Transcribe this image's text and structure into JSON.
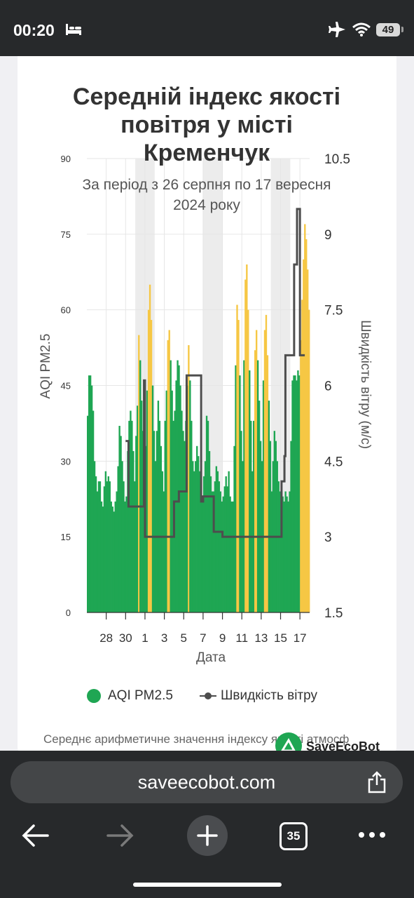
{
  "status": {
    "time": "00:20",
    "battery": "49"
  },
  "browser": {
    "url": "saveecobot.com",
    "tab_count": "35"
  },
  "legend": {
    "aqi_label": "AQI PM2.5",
    "wind_label": "Швидкість вітру"
  },
  "footer": {
    "text": "Середнє арифметичне значення індексу якості атмосф",
    "brand": "SaveEcoBot"
  },
  "chart_data": {
    "type": "bar",
    "title": "Середній індекс якості повітря у місті Кременчук",
    "title_lines": [
      "Середній індекс якості",
      "повітря у місті",
      "Кременчук"
    ],
    "subtitle_lines": [
      "За період з 26 серпня по 17 вересня",
      "2024 року"
    ],
    "xlabel": "Дата",
    "ylabel_left": "AQI PM2.5",
    "ylabel_right": "Швидкість вітру (м/с)",
    "ylim_left": [
      0,
      90
    ],
    "ylim_right": [
      1.5,
      10.5
    ],
    "left_ticks": [
      "0",
      "15",
      "30",
      "45",
      "60",
      "75",
      "90"
    ],
    "right_ticks": [
      "1.5",
      "3",
      "4.5",
      "6",
      "7.5",
      "9",
      "10.5"
    ],
    "x_tick_labels": [
      "28",
      "30",
      "1",
      "3",
      "5",
      "7",
      "9",
      "11",
      "13",
      "15",
      "17"
    ],
    "colors": {
      "good": "#1fa653",
      "moderate": "#f6c744",
      "wind": "#4d4d4d",
      "weekend": "#ececec",
      "grid": "#e6e6e6"
    },
    "daily_aqi": [
      {
        "date": "26.08",
        "values": [
          39,
          47,
          47,
          45,
          40,
          30,
          27
        ]
      },
      {
        "date": "27.08",
        "values": [
          24,
          26,
          26,
          22,
          21,
          25,
          28
        ]
      },
      {
        "date": "28.08",
        "values": [
          26,
          27,
          26,
          22,
          21,
          20,
          22
        ]
      },
      {
        "date": "29.08",
        "values": [
          24,
          29,
          37,
          35,
          30,
          26,
          22
        ]
      },
      {
        "date": "30.08",
        "values": [
          23,
          32,
          38,
          40,
          38,
          32,
          26
        ]
      },
      {
        "date": "31.08",
        "values": [
          35,
          41,
          55,
          50,
          42,
          36,
          30
        ]
      },
      {
        "date": "01.09",
        "values": [
          33,
          44,
          60,
          65,
          58,
          45,
          36
        ]
      },
      {
        "date": "02.09",
        "values": [
          30,
          36,
          42,
          38,
          33,
          28,
          24
        ]
      },
      {
        "date": "03.09",
        "values": [
          38,
          44,
          54,
          56,
          50,
          44,
          38
        ]
      },
      {
        "date": "04.09",
        "values": [
          40,
          46,
          50,
          49,
          45,
          40,
          36
        ]
      },
      {
        "date": "05.09",
        "values": [
          34,
          38,
          45,
          53,
          46,
          38,
          30
        ]
      },
      {
        "date": "06.09",
        "values": [
          28,
          30,
          33,
          31,
          28,
          25,
          22
        ]
      },
      {
        "date": "07.09",
        "values": [
          27,
          30,
          39,
          38,
          32,
          27,
          24
        ]
      },
      {
        "date": "08.09",
        "values": [
          24,
          26,
          29,
          28,
          26,
          24,
          22
        ]
      },
      {
        "date": "09.09",
        "values": [
          23,
          25,
          27,
          25,
          28,
          23,
          22
        ]
      },
      {
        "date": "10.09",
        "values": [
          22,
          33,
          49,
          61,
          58,
          47,
          36
        ]
      },
      {
        "date": "11.09",
        "values": [
          30,
          50,
          66,
          69,
          60,
          48,
          38
        ]
      },
      {
        "date": "12.09",
        "values": [
          28,
          38,
          52,
          56,
          50,
          42,
          34
        ]
      },
      {
        "date": "13.09",
        "values": [
          30,
          46,
          56,
          59,
          51,
          42,
          34
        ]
      },
      {
        "date": "14.09",
        "values": [
          24,
          30,
          36,
          34,
          30,
          26,
          24
        ]
      },
      {
        "date": "15.09",
        "values": [
          22,
          23,
          22,
          24,
          23,
          22,
          24
        ]
      },
      {
        "date": "16.09",
        "values": [
          34,
          46,
          47,
          47,
          46,
          48,
          47
        ]
      },
      {
        "date": "17.09",
        "values": [
          54,
          62,
          70,
          77,
          74,
          68,
          60
        ]
      }
    ],
    "wind_steps": [
      {
        "day": 4.0,
        "value": 4.9
      },
      {
        "day": 4.3,
        "value": 3.6
      },
      {
        "day": 5.0,
        "value": 3.6
      },
      {
        "day": 5.9,
        "value": 6.1
      },
      {
        "day": 6.0,
        "value": 3.0
      },
      {
        "day": 7.0,
        "value": 3.0
      },
      {
        "day": 8.0,
        "value": 3.0
      },
      {
        "day": 9.0,
        "value": 3.7
      },
      {
        "day": 9.5,
        "value": 3.9
      },
      {
        "day": 10.0,
        "value": 3.9
      },
      {
        "day": 10.3,
        "value": 6.2
      },
      {
        "day": 11.0,
        "value": 6.2
      },
      {
        "day": 11.7,
        "value": 6.2
      },
      {
        "day": 11.8,
        "value": 3.7
      },
      {
        "day": 12.0,
        "value": 3.8
      },
      {
        "day": 13.0,
        "value": 3.8
      },
      {
        "day": 13.1,
        "value": 3.1
      },
      {
        "day": 14.0,
        "value": 3.0
      },
      {
        "day": 15.0,
        "value": 3.0
      },
      {
        "day": 16.0,
        "value": 3.0
      },
      {
        "day": 17.0,
        "value": 3.0
      },
      {
        "day": 18.0,
        "value": 3.0
      },
      {
        "day": 19.0,
        "value": 3.0
      },
      {
        "day": 20.0,
        "value": 3.0
      },
      {
        "day": 20.1,
        "value": 4.1
      },
      {
        "day": 20.4,
        "value": 4.6
      },
      {
        "day": 20.5,
        "value": 6.6
      },
      {
        "day": 21.0,
        "value": 6.6
      },
      {
        "day": 21.4,
        "value": 8.4
      },
      {
        "day": 21.7,
        "value": 9.5
      },
      {
        "day": 22.0,
        "value": 6.6
      },
      {
        "day": 22.5,
        "value": 6.6
      }
    ]
  }
}
